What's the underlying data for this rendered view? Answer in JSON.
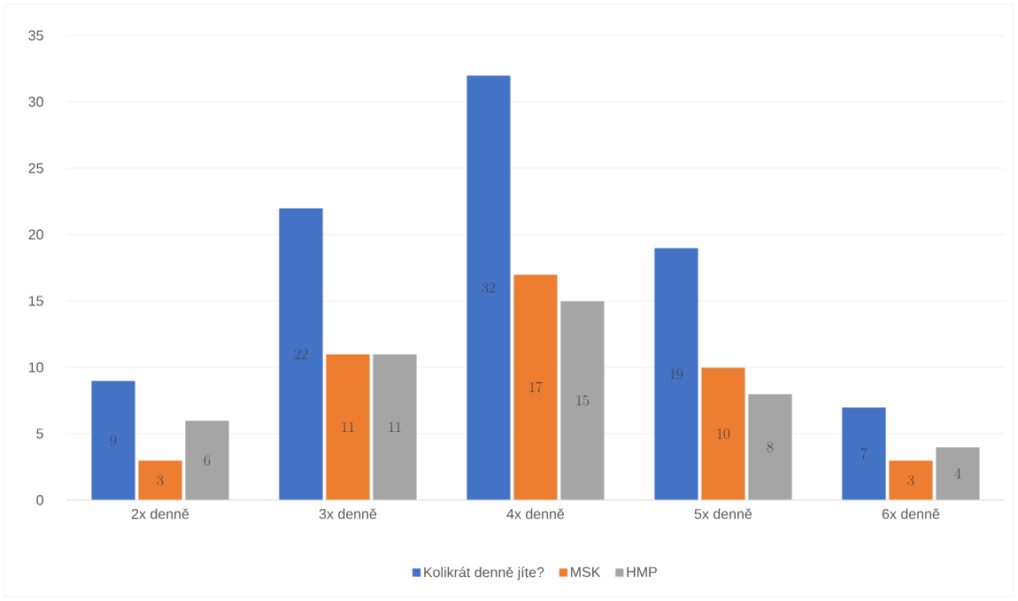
{
  "chart_data": {
    "type": "bar",
    "categories": [
      "2x denně",
      "3x denně",
      "4x denně",
      "5x denně",
      "6x denně"
    ],
    "series": [
      {
        "name": "Kolikrát denně jíte?",
        "color": "#4472c4",
        "values": [
          9,
          22,
          32,
          19,
          7
        ]
      },
      {
        "name": "MSK",
        "color": "#ed7d31",
        "values": [
          3,
          11,
          17,
          10,
          3
        ]
      },
      {
        "name": "HMP",
        "color": "#a5a5a5",
        "values": [
          6,
          11,
          15,
          8,
          4
        ]
      }
    ],
    "ylim": [
      0,
      35
    ],
    "yticks": [
      0,
      5,
      10,
      15,
      20,
      25,
      30,
      35
    ],
    "grid": "y",
    "legend": "bottom",
    "data_labels": true
  }
}
